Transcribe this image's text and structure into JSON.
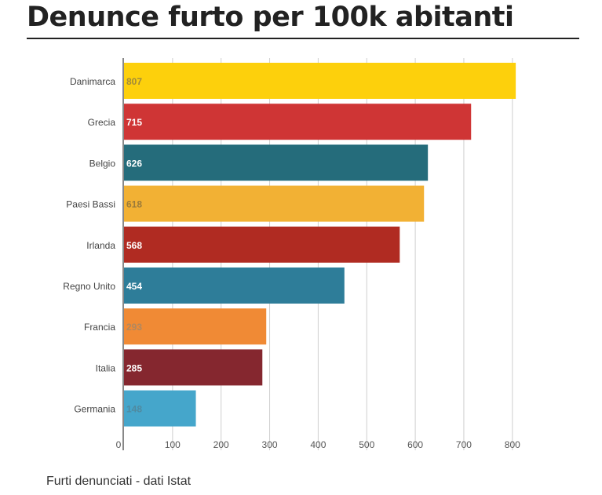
{
  "title": "Denunce furto per 100k abitanti",
  "footer": "Furti denunciati - dati Istat",
  "chart_data": {
    "type": "bar",
    "orientation": "horizontal",
    "categories": [
      "Danimarca",
      "Grecia",
      "Belgio",
      "Paesi Bassi",
      "Irlanda",
      "Regno Unito",
      "Francia",
      "Italia",
      "Germania"
    ],
    "values": [
      807,
      715,
      626,
      618,
      568,
      454,
      293,
      285,
      148
    ],
    "data_labels": [
      "807",
      "715",
      "626",
      "618",
      "568",
      "454",
      "293",
      "285",
      "148"
    ],
    "colors": [
      "#fdd00c",
      "#cf3535",
      "#256c7b",
      "#f2b134",
      "#b02b22",
      "#2e7d99",
      "#f08a35",
      "#85272f",
      "#45a6cb"
    ],
    "label_colors": [
      "#a08a3a",
      "#ffffff",
      "#ffffff",
      "#9a7a3a",
      "#ffffff",
      "#ffffff",
      "#b08860",
      "#ffffff",
      "#4f8aa0"
    ],
    "x_ticks": [
      "0",
      "100",
      "200",
      "300",
      "400",
      "500",
      "600",
      "700",
      "800"
    ],
    "xlim": [
      0,
      820
    ],
    "grid": true
  }
}
